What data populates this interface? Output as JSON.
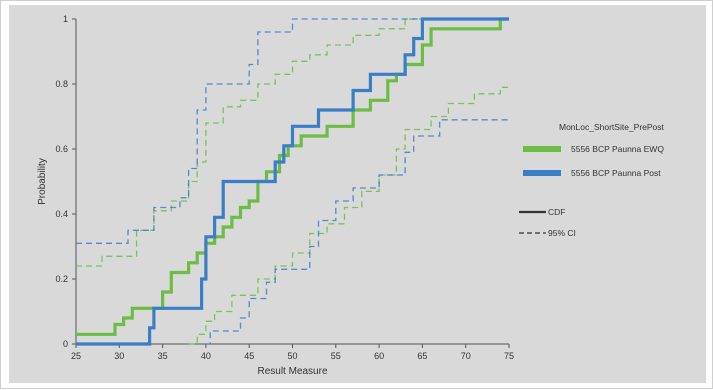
{
  "chart_data": {
    "type": "line",
    "chart_style": "step",
    "xlabel": "Result Measure",
    "ylabel": "Probability",
    "xlim": [
      25,
      75
    ],
    "ylim": [
      0,
      1
    ],
    "x_ticks": [
      25,
      30,
      35,
      40,
      45,
      50,
      55,
      60,
      65,
      70,
      75
    ],
    "y_ticks": [
      0,
      0.2,
      0.4,
      0.6,
      0.8,
      1
    ],
    "y_tick_labels": [
      "0",
      "0.2",
      "0.4",
      "0.6",
      "0.8",
      "1"
    ],
    "grid": false,
    "legend": {
      "title": "MonLoc_ShortSite_PrePost",
      "placement": "right",
      "series_entries": [
        {
          "label": "5556 BCP Paunna EWQ",
          "color": "#6bbd45"
        },
        {
          "label": "5556 BCP Paunna Post",
          "color": "#3a7ec6"
        }
      ],
      "style_entries": [
        {
          "label": "CDF",
          "dash": "solid"
        },
        {
          "label": "95% CI",
          "dash": "dashed"
        }
      ]
    },
    "series": [
      {
        "name": "5556 BCP Paunna EWQ",
        "color": "#6bbd45",
        "cdf": [
          [
            25,
            0.03
          ],
          [
            29.5,
            0.03
          ],
          [
            29.5,
            0.06
          ],
          [
            30.5,
            0.06
          ],
          [
            30.5,
            0.08
          ],
          [
            31.5,
            0.08
          ],
          [
            31.5,
            0.11
          ],
          [
            35,
            0.11
          ],
          [
            35,
            0.16
          ],
          [
            36,
            0.16
          ],
          [
            36,
            0.22
          ],
          [
            38,
            0.22
          ],
          [
            38,
            0.25
          ],
          [
            39,
            0.25
          ],
          [
            39,
            0.28
          ],
          [
            40,
            0.28
          ],
          [
            40,
            0.31
          ],
          [
            41,
            0.31
          ],
          [
            41,
            0.33
          ],
          [
            42,
            0.33
          ],
          [
            42,
            0.36
          ],
          [
            43,
            0.36
          ],
          [
            43,
            0.39
          ],
          [
            44,
            0.39
          ],
          [
            44,
            0.42
          ],
          [
            45,
            0.42
          ],
          [
            45,
            0.44
          ],
          [
            46,
            0.44
          ],
          [
            46,
            0.5
          ],
          [
            47,
            0.5
          ],
          [
            47,
            0.53
          ],
          [
            48.5,
            0.53
          ],
          [
            48.5,
            0.58
          ],
          [
            49.5,
            0.58
          ],
          [
            49.5,
            0.61
          ],
          [
            51,
            0.61
          ],
          [
            51,
            0.64
          ],
          [
            54,
            0.64
          ],
          [
            54,
            0.67
          ],
          [
            57,
            0.67
          ],
          [
            57,
            0.72
          ],
          [
            59,
            0.72
          ],
          [
            59,
            0.75
          ],
          [
            61,
            0.75
          ],
          [
            61,
            0.81
          ],
          [
            62,
            0.81
          ],
          [
            62,
            0.83
          ],
          [
            63,
            0.83
          ],
          [
            63,
            0.86
          ],
          [
            65,
            0.86
          ],
          [
            65,
            0.92
          ],
          [
            66,
            0.92
          ],
          [
            66,
            0.97
          ],
          [
            74,
            0.97
          ],
          [
            74,
            1.0
          ],
          [
            75,
            1.0
          ]
        ],
        "ci_upper": [
          [
            25,
            0.24
          ],
          [
            28,
            0.24
          ],
          [
            28,
            0.27
          ],
          [
            32,
            0.27
          ],
          [
            32,
            0.35
          ],
          [
            34,
            0.35
          ],
          [
            34,
            0.41
          ],
          [
            36,
            0.41
          ],
          [
            36,
            0.44
          ],
          [
            38,
            0.44
          ],
          [
            38,
            0.5
          ],
          [
            39,
            0.5
          ],
          [
            39,
            0.56
          ],
          [
            40,
            0.56
          ],
          [
            40,
            0.68
          ],
          [
            42,
            0.68
          ],
          [
            42,
            0.73
          ],
          [
            44,
            0.73
          ],
          [
            44,
            0.75
          ],
          [
            46,
            0.75
          ],
          [
            46,
            0.8
          ],
          [
            48,
            0.8
          ],
          [
            48,
            0.83
          ],
          [
            50,
            0.83
          ],
          [
            50,
            0.87
          ],
          [
            52,
            0.87
          ],
          [
            52,
            0.89
          ],
          [
            54,
            0.89
          ],
          [
            54,
            0.92
          ],
          [
            57,
            0.92
          ],
          [
            57,
            0.95
          ],
          [
            60,
            0.95
          ],
          [
            60,
            0.97
          ],
          [
            63,
            0.97
          ],
          [
            63,
            1.0
          ],
          [
            75,
            1.0
          ]
        ],
        "ci_lower": [
          [
            38,
            0
          ],
          [
            39,
            0
          ],
          [
            39,
            0.03
          ],
          [
            40,
            0.03
          ],
          [
            40,
            0.07
          ],
          [
            41,
            0.07
          ],
          [
            41,
            0.1
          ],
          [
            43,
            0.1
          ],
          [
            43,
            0.15
          ],
          [
            46,
            0.15
          ],
          [
            46,
            0.2
          ],
          [
            48,
            0.2
          ],
          [
            48,
            0.24
          ],
          [
            50,
            0.24
          ],
          [
            50,
            0.28
          ],
          [
            52,
            0.28
          ],
          [
            52,
            0.34
          ],
          [
            54,
            0.34
          ],
          [
            54,
            0.37
          ],
          [
            56,
            0.37
          ],
          [
            56,
            0.42
          ],
          [
            58,
            0.42
          ],
          [
            58,
            0.47
          ],
          [
            60,
            0.47
          ],
          [
            60,
            0.52
          ],
          [
            62,
            0.52
          ],
          [
            62,
            0.6
          ],
          [
            63,
            0.6
          ],
          [
            63,
            0.66
          ],
          [
            66,
            0.66
          ],
          [
            66,
            0.7
          ],
          [
            68,
            0.7
          ],
          [
            68,
            0.74
          ],
          [
            71,
            0.74
          ],
          [
            71,
            0.77
          ],
          [
            74,
            0.77
          ],
          [
            74,
            0.79
          ],
          [
            75,
            0.79
          ]
        ]
      },
      {
        "name": "5556 BCP Paunna Post",
        "color": "#3a7ec6",
        "cdf": [
          [
            25,
            0
          ],
          [
            33.5,
            0
          ],
          [
            33.5,
            0.05
          ],
          [
            34,
            0.05
          ],
          [
            34,
            0.11
          ],
          [
            39.5,
            0.11
          ],
          [
            39.5,
            0.2
          ],
          [
            40,
            0.2
          ],
          [
            40,
            0.33
          ],
          [
            41,
            0.33
          ],
          [
            41,
            0.39
          ],
          [
            42,
            0.39
          ],
          [
            42,
            0.5
          ],
          [
            48,
            0.5
          ],
          [
            48,
            0.56
          ],
          [
            49,
            0.56
          ],
          [
            49,
            0.61
          ],
          [
            50,
            0.61
          ],
          [
            50,
            0.67
          ],
          [
            53,
            0.67
          ],
          [
            53,
            0.72
          ],
          [
            57,
            0.72
          ],
          [
            57,
            0.78
          ],
          [
            59,
            0.78
          ],
          [
            59,
            0.83
          ],
          [
            63,
            0.83
          ],
          [
            63,
            0.89
          ],
          [
            64,
            0.89
          ],
          [
            64,
            0.94
          ],
          [
            65,
            0.94
          ],
          [
            65,
            1.0
          ],
          [
            75,
            1.0
          ]
        ],
        "ci_upper": [
          [
            25,
            0.31
          ],
          [
            31,
            0.31
          ],
          [
            31,
            0.35
          ],
          [
            34,
            0.35
          ],
          [
            34,
            0.42
          ],
          [
            37,
            0.42
          ],
          [
            37,
            0.45
          ],
          [
            38,
            0.45
          ],
          [
            38,
            0.54
          ],
          [
            39,
            0.54
          ],
          [
            39,
            0.72
          ],
          [
            40,
            0.72
          ],
          [
            40,
            0.8
          ],
          [
            45,
            0.8
          ],
          [
            45,
            0.86
          ],
          [
            46,
            0.86
          ],
          [
            46,
            0.96
          ],
          [
            50,
            0.96
          ],
          [
            50,
            1.0
          ],
          [
            75,
            1.0
          ]
        ],
        "ci_lower": [
          [
            40,
            0
          ],
          [
            40.5,
            0
          ],
          [
            40.5,
            0.04
          ],
          [
            44,
            0.04
          ],
          [
            44,
            0.08
          ],
          [
            45,
            0.08
          ],
          [
            45,
            0.14
          ],
          [
            47,
            0.14
          ],
          [
            47,
            0.19
          ],
          [
            48,
            0.19
          ],
          [
            48,
            0.23
          ],
          [
            52,
            0.23
          ],
          [
            52,
            0.3
          ],
          [
            53,
            0.3
          ],
          [
            53,
            0.38
          ],
          [
            55,
            0.38
          ],
          [
            55,
            0.44
          ],
          [
            57,
            0.44
          ],
          [
            57,
            0.48
          ],
          [
            60,
            0.48
          ],
          [
            60,
            0.52
          ],
          [
            63,
            0.52
          ],
          [
            63,
            0.59
          ],
          [
            64,
            0.59
          ],
          [
            64,
            0.64
          ],
          [
            67,
            0.64
          ],
          [
            67,
            0.69
          ],
          [
            75,
            0.69
          ]
        ]
      }
    ]
  }
}
